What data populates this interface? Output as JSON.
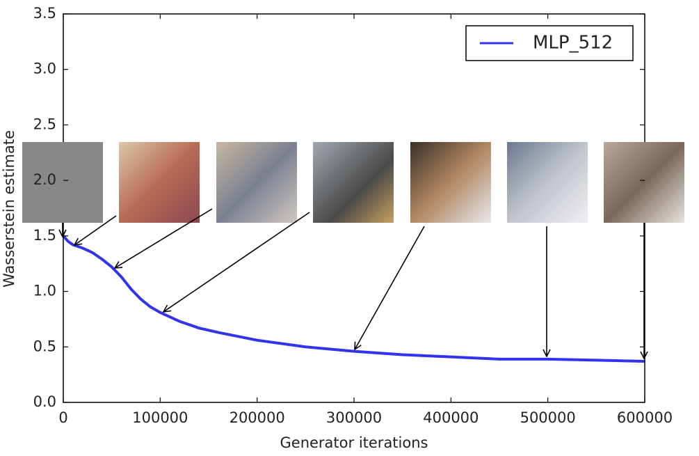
{
  "chart_data": {
    "type": "line",
    "xlabel": "Generator iterations",
    "ylabel": "Wasserstein estimate",
    "x": [
      0,
      5000,
      10000,
      20000,
      30000,
      40000,
      50000,
      60000,
      70000,
      80000,
      90000,
      100000,
      120000,
      140000,
      160000,
      200000,
      250000,
      300000,
      350000,
      400000,
      450000,
      500000,
      550000,
      600000
    ],
    "series": [
      {
        "name": "MLP_512",
        "color": "#3333ee",
        "values": [
          1.5,
          1.45,
          1.42,
          1.39,
          1.35,
          1.29,
          1.22,
          1.13,
          1.02,
          0.93,
          0.86,
          0.81,
          0.73,
          0.67,
          0.63,
          0.56,
          0.5,
          0.46,
          0.43,
          0.41,
          0.39,
          0.39,
          0.38,
          0.37
        ]
      }
    ],
    "xlim": [
      0,
      600000
    ],
    "ylim": [
      0,
      3.5
    ],
    "xticks": [
      0,
      100000,
      200000,
      300000,
      400000,
      500000,
      600000
    ],
    "yticks": [
      {
        "value": 0,
        "label": "0.0"
      },
      0.5,
      {
        "value": 1,
        "label": "1.0"
      },
      1.5,
      {
        "value": 2,
        "label": "2.0"
      },
      2.5,
      {
        "value": 3,
        "label": "3.0"
      },
      3.5
    ],
    "legend": "upper right"
  }
}
